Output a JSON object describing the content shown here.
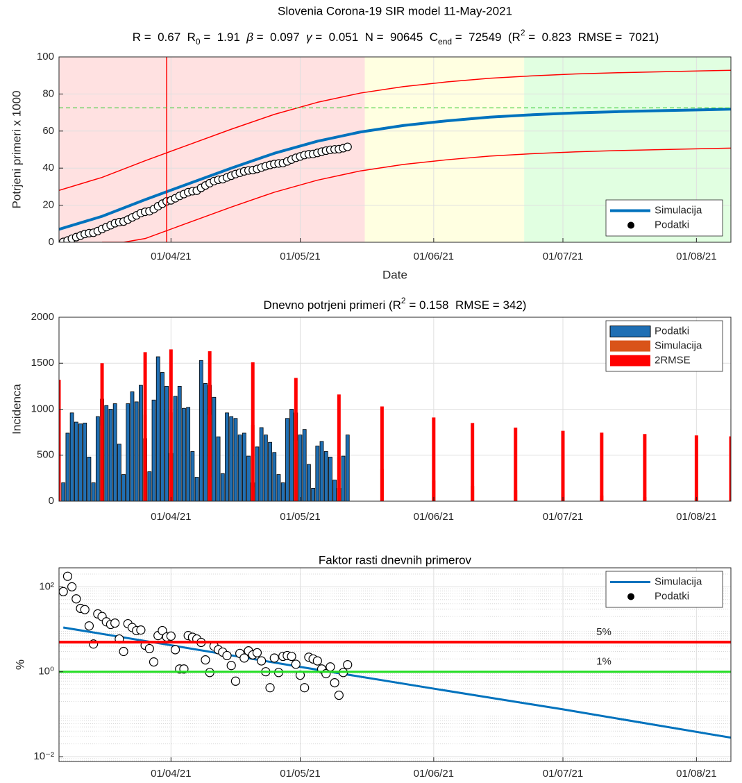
{
  "chart_data": [
    {
      "type": "line",
      "title": "Slovenia Corona-19 SIR model 11-May-2021",
      "subtitle": [
        "R =  0.67  R",
        {
          "text": "0",
          "style": "sub"
        },
        " =  1.91  ",
        {
          "text": "β",
          "style": "italic"
        },
        " =  0.097  ",
        {
          "text": "γ",
          "style": "italic"
        },
        " =  0.051  N =  90645  C",
        {
          "text": "end",
          "style": "sub"
        },
        " =  72549  (R",
        {
          "text": "2",
          "style": "sup"
        },
        " =  0.823  RMSE =  7021)"
      ],
      "xlabel": "Date",
      "ylabel": "Potrjeni primeri x 1000",
      "xlim": [
        "2021-03-06",
        "2021-08-09"
      ],
      "xticks": [
        {
          "value": "2021-04-01",
          "label": "01/04/21"
        },
        {
          "value": "2021-05-01",
          "label": "01/05/21"
        },
        {
          "value": "2021-06-01",
          "label": "01/06/21"
        },
        {
          "value": "2021-07-01",
          "label": "01/07/21"
        },
        {
          "value": "2021-08-01",
          "label": "01/08/21"
        }
      ],
      "ylim": [
        0,
        100
      ],
      "yticks": [
        0,
        20,
        40,
        60,
        80,
        100
      ],
      "grid": true,
      "legend": "lower right",
      "regions": [
        {
          "from": "2021-03-06",
          "to": "2021-05-16",
          "color": "#ffe1e1"
        },
        {
          "from": "2021-05-16",
          "to": "2021-06-22",
          "color": "#ffffe1"
        },
        {
          "from": "2021-06-22",
          "to": "2021-08-09",
          "color": "#e1ffe1"
        }
      ],
      "vlines": [
        {
          "value": "2021-03-31",
          "color": "#ff0000"
        }
      ],
      "hlines": [
        {
          "value": 72.5,
          "color": "#33cc33",
          "dash": true
        }
      ],
      "series": [
        {
          "name": "Simulacija",
          "color": "#0072bd",
          "width": 4,
          "x": [
            "2021-03-06",
            "2021-03-16",
            "2021-03-26",
            "2021-04-05",
            "2021-04-15",
            "2021-04-25",
            "2021-05-05",
            "2021-05-15",
            "2021-05-25",
            "2021-06-04",
            "2021-06-14",
            "2021-06-24",
            "2021-07-04",
            "2021-07-14",
            "2021-07-24",
            "2021-08-03",
            "2021-08-09"
          ],
          "values": [
            7,
            14,
            23,
            31.5,
            40,
            48,
            54.5,
            59.5,
            63,
            65.5,
            67.5,
            68.8,
            69.8,
            70.5,
            71,
            71.5,
            71.8
          ]
        },
        {
          "color": "#ff0000",
          "width": 1.5,
          "x": [
            "2021-03-06",
            "2021-03-16",
            "2021-03-26",
            "2021-04-05",
            "2021-04-15",
            "2021-04-25",
            "2021-05-05",
            "2021-05-15",
            "2021-05-25",
            "2021-06-04",
            "2021-06-14",
            "2021-06-24",
            "2021-07-04",
            "2021-07-14",
            "2021-07-24",
            "2021-08-03",
            "2021-08-09"
          ],
          "values": [
            28,
            35,
            44,
            52.5,
            61,
            69,
            75.5,
            80.5,
            84,
            86.5,
            88.5,
            89.8,
            90.8,
            91.5,
            92,
            92.5,
            92.8
          ]
        },
        {
          "color": "#ff0000",
          "width": 1.5,
          "x": [
            "2021-03-16",
            "2021-03-21",
            "2021-03-26",
            "2021-04-05",
            "2021-04-15",
            "2021-04-25",
            "2021-05-05",
            "2021-05-15",
            "2021-05-25",
            "2021-06-04",
            "2021-06-14",
            "2021-06-24",
            "2021-07-04",
            "2021-07-14",
            "2021-07-24",
            "2021-08-03",
            "2021-08-09"
          ],
          "values": [
            0,
            0,
            2,
            10.5,
            19,
            27,
            33.5,
            38.5,
            42,
            44.5,
            46.5,
            47.8,
            48.8,
            49.5,
            50,
            50.5,
            50.8
          ]
        },
        {
          "name": "Podatki",
          "style": "markers",
          "color": "#ffffff",
          "edgecolor": "#000000",
          "x": [
            "2021-03-07",
            "2021-03-08",
            "2021-03-09",
            "2021-03-10",
            "2021-03-11",
            "2021-03-12",
            "2021-03-13",
            "2021-03-14",
            "2021-03-15",
            "2021-03-16",
            "2021-03-17",
            "2021-03-18",
            "2021-03-19",
            "2021-03-20",
            "2021-03-21",
            "2021-03-22",
            "2021-03-23",
            "2021-03-24",
            "2021-03-25",
            "2021-03-26",
            "2021-03-27",
            "2021-03-28",
            "2021-03-29",
            "2021-03-30",
            "2021-03-31",
            "2021-04-01",
            "2021-04-02",
            "2021-04-03",
            "2021-04-04",
            "2021-04-05",
            "2021-04-06",
            "2021-04-07",
            "2021-04-08",
            "2021-04-09",
            "2021-04-10",
            "2021-04-11",
            "2021-04-12",
            "2021-04-13",
            "2021-04-14",
            "2021-04-15",
            "2021-04-16",
            "2021-04-17",
            "2021-04-18",
            "2021-04-19",
            "2021-04-20",
            "2021-04-21",
            "2021-04-22",
            "2021-04-23",
            "2021-04-24",
            "2021-04-25",
            "2021-04-26",
            "2021-04-27",
            "2021-04-28",
            "2021-04-29",
            "2021-04-30",
            "2021-05-01",
            "2021-05-02",
            "2021-05-03",
            "2021-05-04",
            "2021-05-05",
            "2021-05-06",
            "2021-05-07",
            "2021-05-08",
            "2021-05-09",
            "2021-05-10",
            "2021-05-11",
            "2021-05-12"
          ],
          "values": [
            0.2,
            0.94,
            1.9,
            2.76,
            3.6,
            4.45,
            4.93,
            5.13,
            6.05,
            7.16,
            8.2,
            9.2,
            10.26,
            10.88,
            11.17,
            12.23,
            13.42,
            14.5,
            15.76,
            16.44,
            16.76,
            17.86,
            19.43,
            20.83,
            22.08,
            22.6,
            23.74,
            24.99,
            26.0,
            27.02,
            27.56,
            27.82,
            29.35,
            30.63,
            31.89,
            33.02,
            33.72,
            34.02,
            34.98,
            35.9,
            36.8,
            37.52,
            38.26,
            38.75,
            38.95,
            39.54,
            40.34,
            41.06,
            41.7,
            42.23,
            42.52,
            42.72,
            43.62,
            44.62,
            45.58,
            46.3,
            47.08,
            47.48,
            47.62,
            48.22,
            48.87,
            49.41,
            49.89,
            50.12,
            50.26,
            50.75,
            51.47
          ]
        }
      ]
    },
    {
      "type": "bar",
      "title": [
        "Dnevno potrjeni primeri (R",
        {
          "text": "2",
          "style": "sup"
        },
        " = 0.158  RMSE = 342)"
      ],
      "ylabel": "Incidenca",
      "xlim": [
        "2021-03-06",
        "2021-08-09"
      ],
      "xticks": [
        {
          "value": "2021-04-01",
          "label": "01/04/21"
        },
        {
          "value": "2021-05-01",
          "label": "01/05/21"
        },
        {
          "value": "2021-06-01",
          "label": "01/06/21"
        },
        {
          "value": "2021-07-01",
          "label": "01/07/21"
        },
        {
          "value": "2021-08-01",
          "label": "01/08/21"
        }
      ],
      "ylim": [
        0,
        2000
      ],
      "yticks": [
        0,
        500,
        1000,
        1500,
        2000
      ],
      "grid": true,
      "legend": "upper right",
      "series": [
        {
          "name": "Podatki",
          "style": "bar",
          "color": "#1f6fb4",
          "edgecolor": "#000000",
          "x": [
            "2021-03-07",
            "2021-03-08",
            "2021-03-09",
            "2021-03-10",
            "2021-03-11",
            "2021-03-12",
            "2021-03-13",
            "2021-03-14",
            "2021-03-15",
            "2021-03-16",
            "2021-03-17",
            "2021-03-18",
            "2021-03-19",
            "2021-03-20",
            "2021-03-21",
            "2021-03-22",
            "2021-03-23",
            "2021-03-24",
            "2021-03-25",
            "2021-03-26",
            "2021-03-27",
            "2021-03-28",
            "2021-03-29",
            "2021-03-30",
            "2021-03-31",
            "2021-04-01",
            "2021-04-02",
            "2021-04-03",
            "2021-04-04",
            "2021-04-05",
            "2021-04-06",
            "2021-04-07",
            "2021-04-08",
            "2021-04-09",
            "2021-04-10",
            "2021-04-11",
            "2021-04-12",
            "2021-04-13",
            "2021-04-14",
            "2021-04-15",
            "2021-04-16",
            "2021-04-17",
            "2021-04-18",
            "2021-04-19",
            "2021-04-20",
            "2021-04-21",
            "2021-04-22",
            "2021-04-23",
            "2021-04-24",
            "2021-04-25",
            "2021-04-26",
            "2021-04-27",
            "2021-04-28",
            "2021-04-29",
            "2021-04-30",
            "2021-05-01",
            "2021-05-02",
            "2021-05-03",
            "2021-05-04",
            "2021-05-05",
            "2021-05-06",
            "2021-05-07",
            "2021-05-08",
            "2021-05-09",
            "2021-05-10",
            "2021-05-11",
            "2021-05-12"
          ],
          "values": [
            200,
            740,
            960,
            860,
            840,
            850,
            480,
            200,
            920,
            1110,
            1040,
            1000,
            1060,
            620,
            290,
            1060,
            1190,
            1080,
            1260,
            680,
            320,
            1100,
            1570,
            1400,
            1250,
            520,
            1140,
            1250,
            1010,
            1020,
            540,
            260,
            1530,
            1280,
            1260,
            1130,
            700,
            300,
            960,
            920,
            900,
            720,
            740,
            490,
            200,
            590,
            800,
            720,
            640,
            530,
            290,
            200,
            900,
            1000,
            960,
            720,
            780,
            400,
            140,
            600,
            650,
            540,
            480,
            230,
            140,
            490,
            720
          ]
        },
        {
          "name": "Simulacija",
          "color": "#d95319",
          "width": 3,
          "x": [
            "2021-03-06",
            "2021-03-16",
            "2021-03-26",
            "2021-04-01",
            "2021-04-10",
            "2021-04-20",
            "2021-04-30",
            "2021-05-10",
            "2021-05-20",
            "2021-06-01",
            "2021-06-10",
            "2021-06-20",
            "2021-07-01",
            "2021-07-10",
            "2021-07-20",
            "2021-08-01",
            "2021-08-09"
          ],
          "values": [
            640,
            820,
            940,
            965,
            940,
            830,
            660,
            480,
            350,
            225,
            165,
            120,
            85,
            62,
            45,
            30,
            22
          ]
        },
        {
          "name": "2RMSE",
          "color": "#ff0000",
          "width": 1.5,
          "x": [
            "2021-03-06",
            "2021-03-16",
            "2021-03-26",
            "2021-04-01",
            "2021-04-10",
            "2021-04-20",
            "2021-04-30",
            "2021-05-10",
            "2021-05-20",
            "2021-06-01",
            "2021-06-10",
            "2021-06-20",
            "2021-07-01",
            "2021-07-10",
            "2021-07-20",
            "2021-08-01",
            "2021-08-09"
          ],
          "values": [
            1320,
            1500,
            1620,
            1650,
            1630,
            1510,
            1340,
            1160,
            1030,
            910,
            850,
            800,
            765,
            745,
            730,
            715,
            705
          ]
        },
        {
          "color": "#ff0000",
          "width": 1.5,
          "x": [
            "2021-03-08",
            "2021-03-16",
            "2021-03-26",
            "2021-04-01",
            "2021-04-10",
            "2021-04-20",
            "2021-04-27",
            "2021-08-09"
          ],
          "values": [
            0,
            140,
            260,
            285,
            260,
            150,
            0,
            0
          ]
        }
      ]
    },
    {
      "type": "line",
      "title": "Faktor rasti dnevnih primerov",
      "ylabel": "%",
      "yscale": "log",
      "minor_grid": true,
      "xlim": [
        "2021-03-06",
        "2021-08-09"
      ],
      "xticks": [
        {
          "value": "2021-04-01",
          "label": "01/04/21"
        },
        {
          "value": "2021-05-01",
          "label": "01/05/21"
        },
        {
          "value": "2021-06-01",
          "label": "01/06/21"
        },
        {
          "value": "2021-07-01",
          "label": "01/07/21"
        },
        {
          "value": "2021-08-01",
          "label": "01/08/21"
        }
      ],
      "ylim": [
        0.0077,
        280
      ],
      "yticks": [
        {
          "value": 0.01,
          "label": "10⁻²"
        },
        {
          "value": 1,
          "label": "10⁰"
        },
        {
          "value": 100,
          "label": "10²"
        }
      ],
      "grid": true,
      "legend": "upper right",
      "hlines": [
        {
          "value": 5,
          "label": "5%",
          "color": "#ff0000",
          "width": 4
        },
        {
          "value": 1,
          "label": "1%",
          "color": "#22dd22",
          "width": 3
        }
      ],
      "series": [
        {
          "name": "Simulacija",
          "color": "#0072bd",
          "width": 3,
          "x": [
            "2021-03-07",
            "2021-04-01",
            "2021-05-01",
            "2021-06-01",
            "2021-07-01",
            "2021-08-09"
          ],
          "values": [
            11,
            4.2,
            1.3,
            0.4,
            0.13,
            0.028
          ]
        },
        {
          "name": "Podatki",
          "style": "markers",
          "color": "#ffffff",
          "edgecolor": "#000000",
          "x": [
            "2021-03-07",
            "2021-03-08",
            "2021-03-09",
            "2021-03-10",
            "2021-03-11",
            "2021-03-12",
            "2021-03-13",
            "2021-03-14",
            "2021-03-15",
            "2021-03-16",
            "2021-03-17",
            "2021-03-18",
            "2021-03-19",
            "2021-03-20",
            "2021-03-21",
            "2021-03-22",
            "2021-03-23",
            "2021-03-24",
            "2021-03-25",
            "2021-03-26",
            "2021-03-27",
            "2021-03-28",
            "2021-03-29",
            "2021-03-30",
            "2021-03-31",
            "2021-04-01",
            "2021-04-02",
            "2021-04-03",
            "2021-04-04",
            "2021-04-05",
            "2021-04-06",
            "2021-04-07",
            "2021-04-08",
            "2021-04-09",
            "2021-04-10",
            "2021-04-11",
            "2021-04-12",
            "2021-04-13",
            "2021-04-14",
            "2021-04-15",
            "2021-04-16",
            "2021-04-17",
            "2021-04-18",
            "2021-04-19",
            "2021-04-20",
            "2021-04-21",
            "2021-04-22",
            "2021-04-23",
            "2021-04-24",
            "2021-04-25",
            "2021-04-26",
            "2021-04-27",
            "2021-04-28",
            "2021-04-29",
            "2021-04-30",
            "2021-05-01",
            "2021-05-02",
            "2021-05-03",
            "2021-05-04",
            "2021-05-05",
            "2021-05-06",
            "2021-05-07",
            "2021-05-08",
            "2021-05-09",
            "2021-05-10",
            "2021-05-11",
            "2021-05-12"
          ],
          "values": [
            77,
            177,
            100,
            52,
            31,
            29,
            12,
            4.5,
            23,
            20,
            15,
            13,
            14,
            5.9,
            3.0,
            13.5,
            11,
            9.3,
            9.6,
            4.2,
            3.5,
            1.7,
            7.1,
            9.3,
            6.6,
            6.9,
            3.3,
            1.16,
            1.16,
            7.1,
            6.5,
            5.9,
            4.9,
            1.9,
            0.96,
            4.0,
            3.3,
            2.9,
            2.4,
            1.4,
            0.6,
            2.7,
            2.1,
            3.1,
            2.5,
            2.8,
            1.8,
            1.0,
            0.42,
            2.1,
            0.96,
            2.3,
            2.4,
            2.3,
            1.5,
            0.83,
            0.42,
            2.2,
            2.0,
            1.8,
            1.16,
            0.9,
            1.3,
            0.55,
            0.28,
            0.96,
            1.46
          ]
        }
      ]
    }
  ]
}
